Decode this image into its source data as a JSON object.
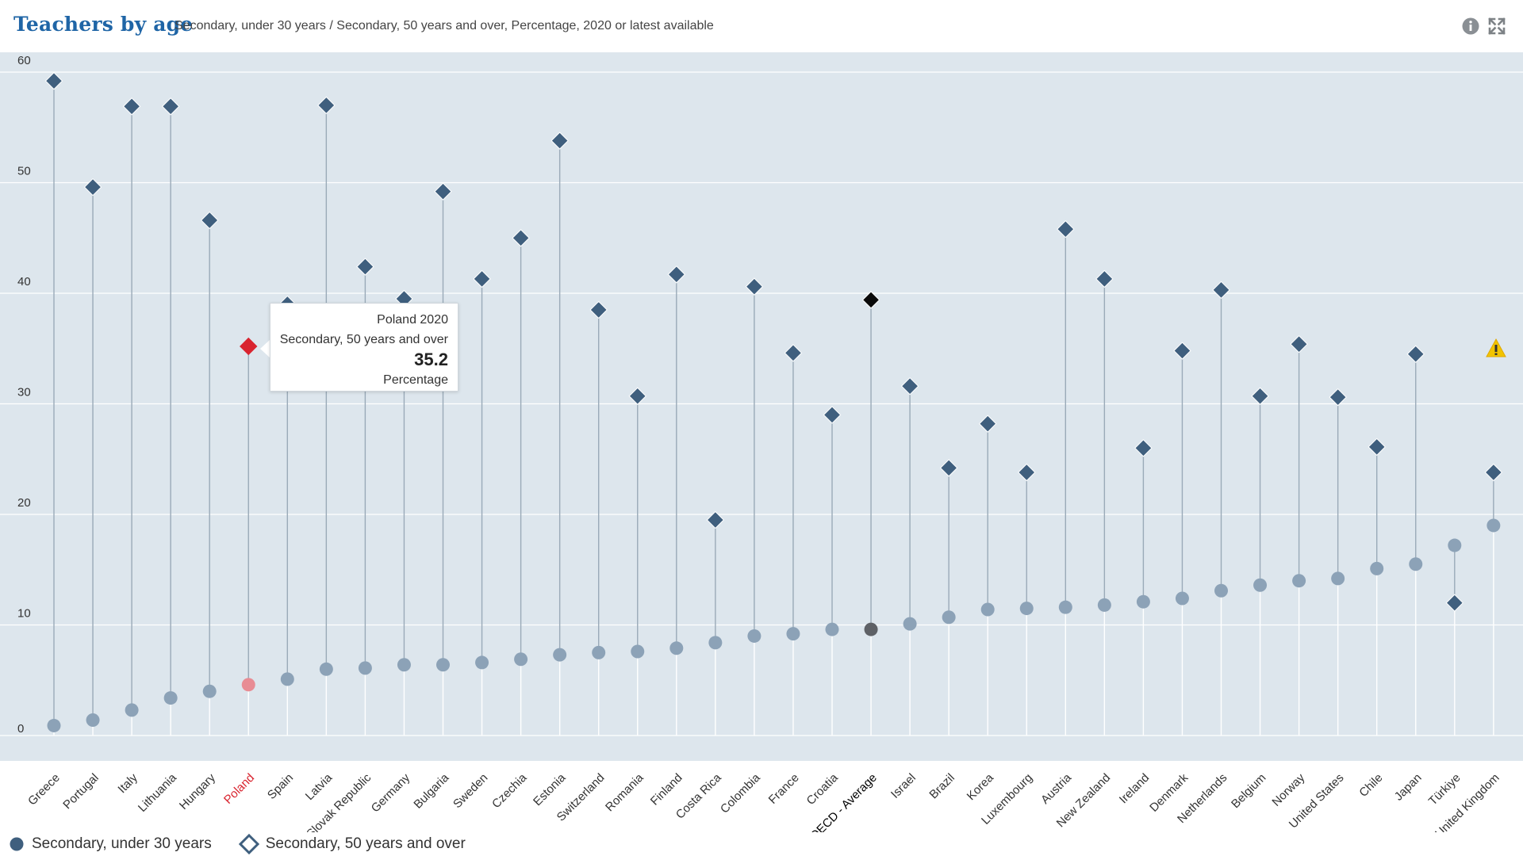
{
  "header": {
    "title": "Teachers by age",
    "subtitle": "Secondary, under 30 years / Secondary, 50 years and over, Percentage, 2020 or latest available",
    "info_icon": "info-icon",
    "expand_icon": "expand-icon"
  },
  "colors": {
    "background": "#dde6ed",
    "diamond": "#3f5f7e",
    "circle": "#8ca2b7",
    "highlight": "#d9242f",
    "highlight_circle": "#e88c94",
    "average_diamond": "#0a0a0a",
    "average_circle": "#5e6166",
    "warning": "#f2c400"
  },
  "chart_data": {
    "type": "scatter",
    "ylim": [
      0,
      60
    ],
    "yticks": [
      0,
      10,
      20,
      30,
      40,
      50,
      60
    ],
    "grid": true,
    "legend_position": "bottom-left",
    "categories": [
      "Greece",
      "Portugal",
      "Italy",
      "Lithuania",
      "Hungary",
      "Poland",
      "Spain",
      "Latvia",
      "Slovak Republic",
      "Germany",
      "Bulgaria",
      "Sweden",
      "Czechia",
      "Estonia",
      "Switzerland",
      "Romania",
      "Finland",
      "Costa Rica",
      "Colombia",
      "France",
      "Croatia",
      "OECD - Average",
      "Israel",
      "Brazil",
      "Korea",
      "Luxembourg",
      "Austria",
      "New Zealand",
      "Ireland",
      "Denmark",
      "Netherlands",
      "Belgium",
      "Norway",
      "United States",
      "Chile",
      "Japan",
      "Türkiye",
      "United Kingdom"
    ],
    "highlight_category": "Poland",
    "average_category": "OECD - Average",
    "series": [
      {
        "name": "Secondary, under 30 years",
        "marker": "circle",
        "values": [
          0.9,
          1.4,
          2.3,
          3.4,
          4.0,
          4.6,
          5.1,
          6.0,
          6.1,
          6.4,
          6.4,
          6.6,
          6.9,
          7.3,
          7.5,
          7.6,
          7.9,
          8.4,
          9.0,
          9.2,
          9.6,
          9.6,
          10.1,
          10.7,
          11.4,
          11.5,
          11.6,
          11.8,
          12.1,
          12.4,
          13.1,
          13.6,
          14.0,
          14.2,
          15.1,
          15.5,
          17.2,
          19.0
        ]
      },
      {
        "name": "Secondary, 50 years and over",
        "marker": "diamond",
        "values": [
          59.2,
          49.6,
          56.9,
          56.9,
          46.6,
          35.2,
          39.0,
          57.0,
          42.4,
          39.5,
          49.2,
          41.3,
          45.0,
          53.8,
          38.5,
          30.7,
          41.7,
          19.5,
          40.6,
          34.6,
          29.0,
          39.4,
          31.6,
          24.2,
          28.2,
          23.8,
          45.8,
          41.3,
          26.0,
          34.8,
          40.3,
          30.7,
          35.4,
          30.6,
          26.1,
          34.5,
          12.0,
          23.8
        ]
      }
    ],
    "tooltip": {
      "title": "Poland 2020",
      "series": "Secondary, 50 years and over",
      "value": "35.2",
      "unit": "Percentage"
    }
  },
  "legend": {
    "items": [
      {
        "label": "Secondary, under 30 years",
        "marker": "circle"
      },
      {
        "label": "Secondary, 50 years and over",
        "marker": "diamond-outline"
      }
    ]
  }
}
